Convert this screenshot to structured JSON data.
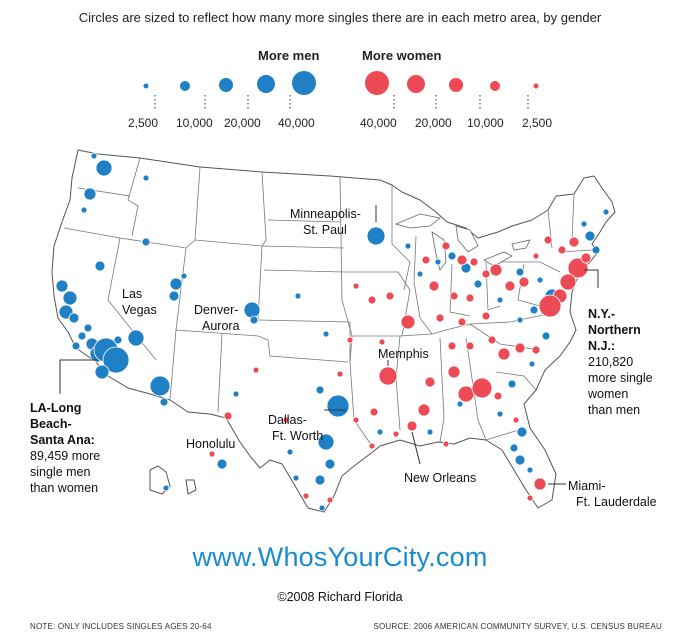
{
  "subtitle": "Circles are sized to reflect how many more singles there are in each metro area, by gender",
  "legend": {
    "men_label": "More men",
    "women_label": "More women",
    "men_scale": [
      "2,500",
      "10,000",
      "20,000",
      "40,000"
    ],
    "women_scale": [
      "40,000",
      "20,000",
      "10,000",
      "2,500"
    ]
  },
  "colors": {
    "men": "#1f80c6",
    "women": "#ec4b55",
    "map_stroke": "#555555"
  },
  "cities": {
    "minneapolis": [
      "Minneapolis-",
      "St. Paul"
    ],
    "las_vegas": [
      "Las",
      "Vegas"
    ],
    "denver": [
      "Denver-",
      "Aurora"
    ],
    "memphis": [
      "Memphis"
    ],
    "dallas": [
      "Dallas-",
      "Ft. Worth"
    ],
    "honolulu": [
      "Honolulu"
    ],
    "new_orleans": [
      "New Orleans"
    ],
    "miami": [
      "Miami-",
      "Ft. Lauderdale"
    ],
    "la": {
      "name": [
        "LA-Long",
        "Beach-",
        "Santa Ana:"
      ],
      "detail": [
        "89,459 more",
        "single men",
        "than women"
      ]
    },
    "ny": {
      "name": [
        "N.Y.-",
        "Northern",
        "N.J.:"
      ],
      "detail": [
        "210,820",
        "more single",
        "women",
        "than men"
      ]
    }
  },
  "website": "www.WhosYourCity.com",
  "copyright": "©2008 Richard Florida",
  "note_left": "NOTE: ONLY INCLUDES SINGLES AGES 20-64",
  "note_right": "SOURCE: 2006 AMERICAN COMMUNITY SURVEY, U.S. CENSUS BUREAU"
}
